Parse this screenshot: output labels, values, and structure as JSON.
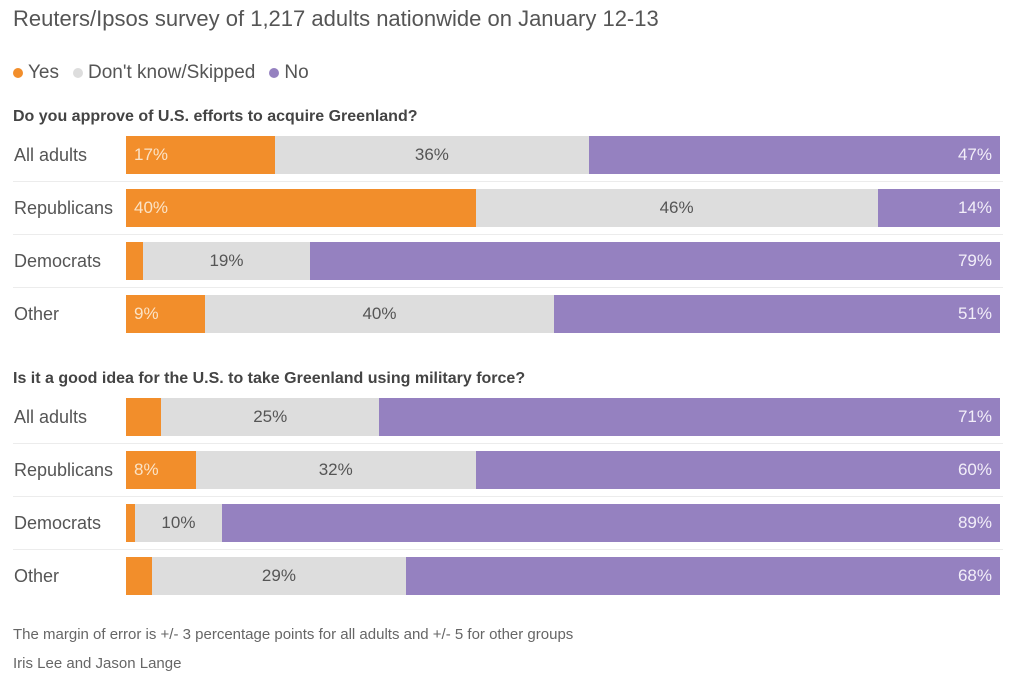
{
  "header": {
    "title": "Reuters/Ipsos survey of 1,217 adults nationwide on January 12-13"
  },
  "legend": [
    {
      "label": "Yes",
      "color": "#f28e2b"
    },
    {
      "label": "Don't know/Skipped",
      "color": "#dddddd"
    },
    {
      "label": "No",
      "color": "#9581c0"
    }
  ],
  "chart_data": [
    {
      "type": "bar",
      "orientation": "horizontal",
      "stacked": true,
      "title": "Do you approve of U.S. efforts to acquire Greenland?",
      "categories": [
        "All adults",
        "Republicans",
        "Democrats",
        "Other"
      ],
      "series": [
        {
          "name": "Yes",
          "color": "#f28e2b",
          "values": [
            17,
            40,
            2,
            9
          ],
          "labels": [
            "17%",
            "40%",
            "",
            "9%"
          ]
        },
        {
          "name": "Don't know/Skipped",
          "color": "#dddddd",
          "values": [
            36,
            46,
            19,
            40
          ],
          "labels": [
            "36%",
            "46%",
            "19%",
            "40%"
          ]
        },
        {
          "name": "No",
          "color": "#9581c0",
          "values": [
            47,
            14,
            79,
            51
          ],
          "labels": [
            "47%",
            "14%",
            "79%",
            "51%"
          ]
        }
      ],
      "xlim": [
        0,
        100
      ],
      "unit": "%"
    },
    {
      "type": "bar",
      "orientation": "horizontal",
      "stacked": true,
      "title": "Is it a good idea for the U.S. to take Greenland using military force?",
      "categories": [
        "All adults",
        "Republicans",
        "Democrats",
        "Other"
      ],
      "series": [
        {
          "name": "Yes",
          "color": "#f28e2b",
          "values": [
            4,
            8,
            1,
            3
          ],
          "labels": [
            "",
            "8%",
            "",
            ""
          ]
        },
        {
          "name": "Don't know/Skipped",
          "color": "#dddddd",
          "values": [
            25,
            32,
            10,
            29
          ],
          "labels": [
            "25%",
            "32%",
            "10%",
            "29%"
          ]
        },
        {
          "name": "No",
          "color": "#9581c0",
          "values": [
            71,
            60,
            89,
            68
          ],
          "labels": [
            "71%",
            "60%",
            "89%",
            "68%"
          ]
        }
      ],
      "xlim": [
        0,
        100
      ],
      "unit": "%"
    }
  ],
  "footer": {
    "note": "The margin of error is +/- 3 percentage points for all adults and +/- 5 for other groups",
    "credit": "Iris Lee and Jason Lange"
  }
}
